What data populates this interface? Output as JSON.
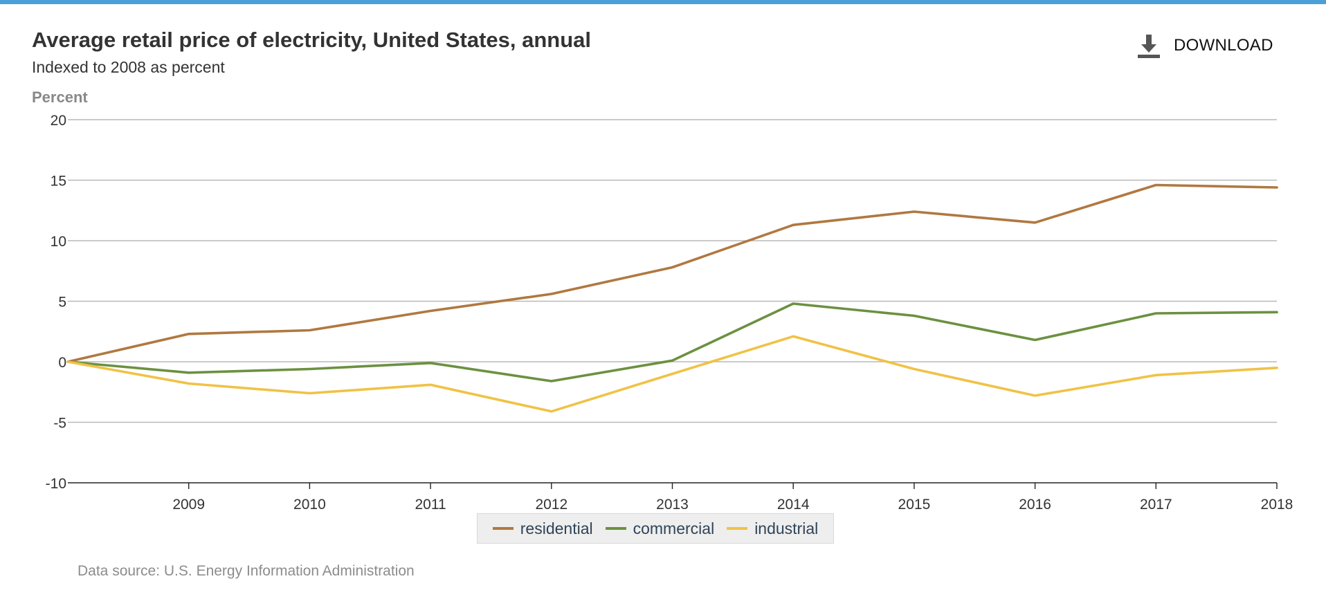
{
  "colors": {
    "accent_bar": "#4a9fd8",
    "gridline": "#b8b8b8",
    "axis": "#222222",
    "text": "#333333",
    "axis_title": "#888888",
    "source_text": "#8c8c8c",
    "legend_bg": "#eeeeee"
  },
  "header": {
    "title": "Average retail price of electricity, United States, annual",
    "subtitle": "Indexed to 2008 as percent"
  },
  "download": {
    "label": "DOWNLOAD",
    "icon": "download-icon"
  },
  "source": "Data source: U.S. Energy Information Administration",
  "chart_data": {
    "type": "line",
    "ylabel": "Percent",
    "xlabel": "",
    "x": [
      2008,
      2009,
      2010,
      2011,
      2012,
      2013,
      2014,
      2015,
      2016,
      2017,
      2018
    ],
    "x_tick_labels": [
      "2009",
      "2010",
      "2011",
      "2012",
      "2013",
      "2014",
      "2015",
      "2016",
      "2017",
      "2018"
    ],
    "y_ticks": [
      20,
      15,
      10,
      5,
      0,
      -5,
      -10
    ],
    "xlim": [
      2008,
      2018
    ],
    "ylim": [
      -10,
      20
    ],
    "grid": true,
    "legend_position": "bottom-center",
    "series": [
      {
        "name": "residential",
        "color": "#b07840",
        "values": [
          0,
          2.3,
          2.6,
          4.2,
          5.6,
          7.8,
          11.3,
          12.4,
          11.5,
          14.6,
          14.4
        ]
      },
      {
        "name": "commercial",
        "color": "#6b9140",
        "values": [
          0,
          -0.9,
          -0.6,
          -0.1,
          -1.6,
          0.1,
          4.8,
          3.8,
          1.8,
          4.0,
          4.1
        ]
      },
      {
        "name": "industrial",
        "color": "#f0c246",
        "values": [
          0,
          -1.8,
          -2.6,
          -1.9,
          -4.1,
          -1.0,
          2.1,
          -0.6,
          -2.8,
          -1.1,
          -0.5
        ]
      }
    ]
  }
}
